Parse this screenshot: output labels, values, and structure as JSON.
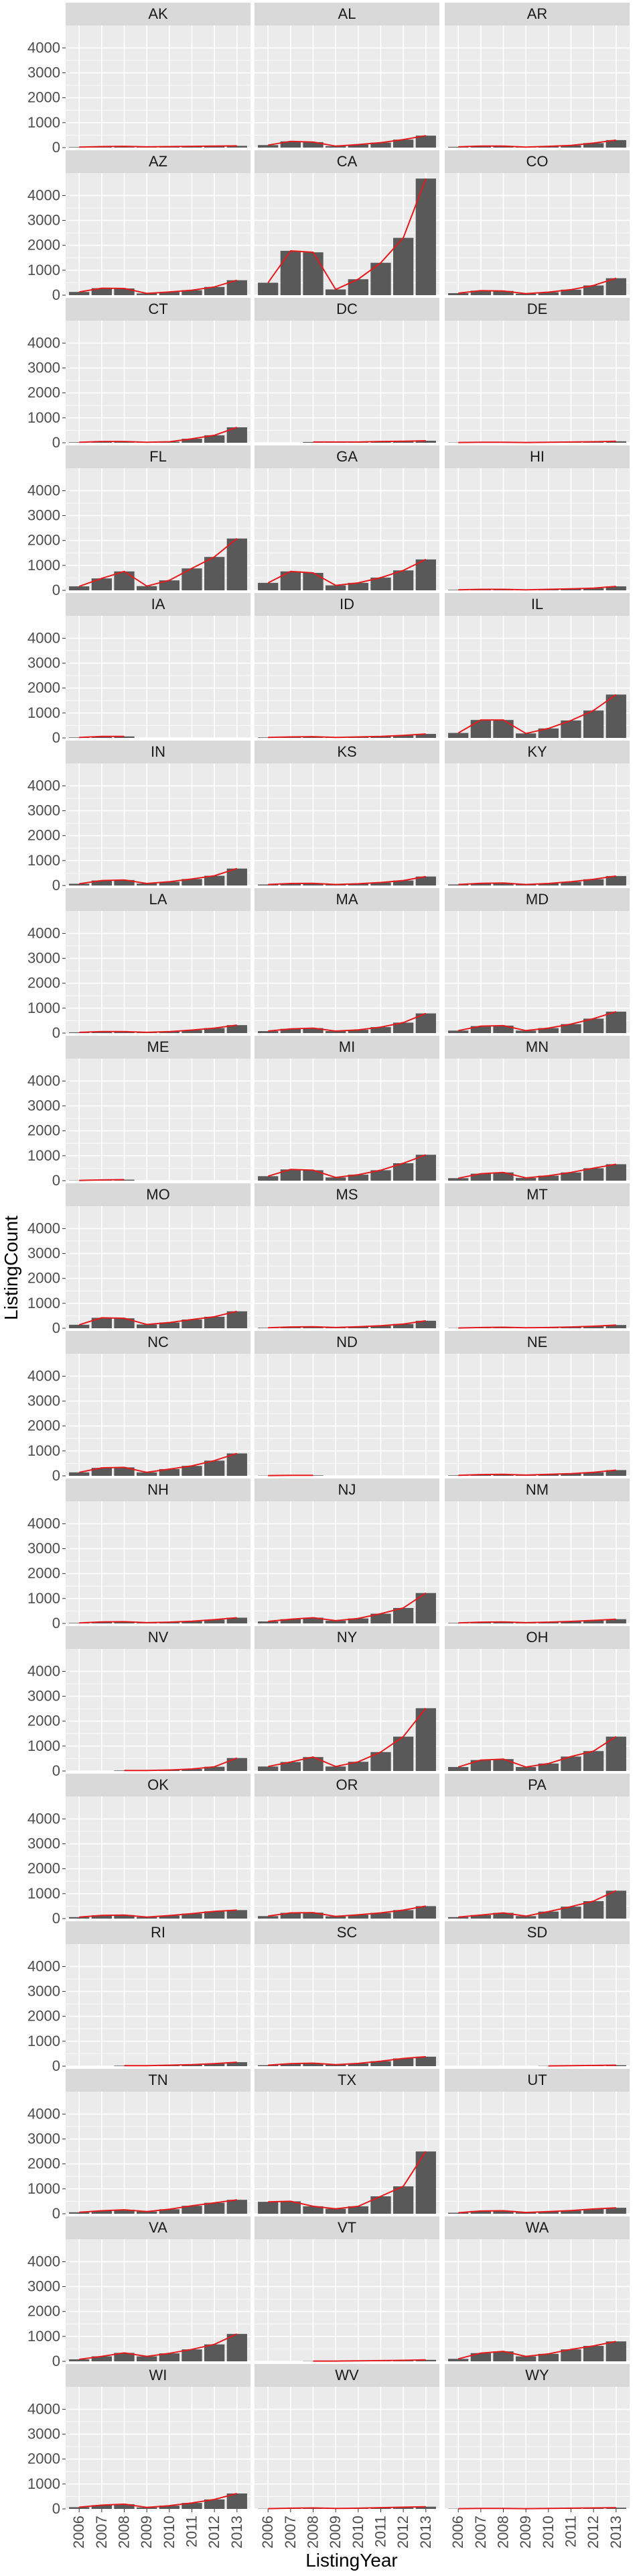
{
  "chart_data": {
    "type": "bar",
    "facet_by": "state",
    "facet_layout": "3 columns x 17 rows",
    "overlay": "line",
    "xlabel": "ListingYear",
    "ylabel": "ListingCount",
    "x": [
      "2006",
      "2007",
      "2008",
      "2009",
      "2010",
      "2011",
      "2012",
      "2013"
    ],
    "ylim": [
      0,
      4900
    ],
    "yticks": [
      0,
      1000,
      2000,
      3000,
      4000
    ],
    "grid": true,
    "colors": {
      "bar": "#595959",
      "line": "#e41a1c",
      "panel": "#ebebeb",
      "strip": "#d9d9d9",
      "gridline": "#ffffff"
    },
    "panels": [
      {
        "label": "AK",
        "values": [
          20,
          40,
          50,
          30,
          40,
          50,
          60,
          70
        ]
      },
      {
        "label": "AL",
        "values": [
          100,
          250,
          220,
          60,
          120,
          200,
          320,
          480
        ]
      },
      {
        "label": "AR",
        "values": [
          30,
          60,
          60,
          20,
          50,
          90,
          180,
          300
        ]
      },
      {
        "label": "AZ",
        "values": [
          130,
          280,
          270,
          70,
          130,
          200,
          330,
          600
        ]
      },
      {
        "label": "CA",
        "values": [
          500,
          1780,
          1720,
          230,
          640,
          1300,
          2300,
          4680
        ]
      },
      {
        "label": "CO",
        "values": [
          80,
          180,
          170,
          60,
          120,
          220,
          390,
          680
        ]
      },
      {
        "label": "CT",
        "values": [
          20,
          50,
          50,
          20,
          40,
          160,
          300,
          620
        ]
      },
      {
        "label": "DC",
        "values": [
          null,
          null,
          30,
          30,
          30,
          50,
          60,
          80
        ]
      },
      {
        "label": "DE",
        "values": [
          10,
          20,
          20,
          10,
          20,
          30,
          40,
          60
        ]
      },
      {
        "label": "FL",
        "values": [
          160,
          480,
          760,
          170,
          400,
          880,
          1340,
          2080
        ]
      },
      {
        "label": "GA",
        "values": [
          300,
          760,
          700,
          200,
          300,
          510,
          800,
          1240
        ]
      },
      {
        "label": "HI",
        "values": [
          20,
          40,
          40,
          20,
          40,
          60,
          90,
          160
        ]
      },
      {
        "label": "IA",
        "values": [
          20,
          60,
          60,
          null,
          null,
          null,
          null,
          null
        ]
      },
      {
        "label": "ID",
        "values": [
          20,
          40,
          50,
          20,
          40,
          60,
          100,
          160
        ]
      },
      {
        "label": "IL",
        "values": [
          200,
          720,
          720,
          180,
          380,
          700,
          1100,
          1740
        ]
      },
      {
        "label": "IN",
        "values": [
          70,
          200,
          220,
          80,
          150,
          260,
          390,
          680
        ]
      },
      {
        "label": "KS",
        "values": [
          40,
          80,
          90,
          40,
          70,
          120,
          200,
          360
        ]
      },
      {
        "label": "KY",
        "values": [
          40,
          90,
          100,
          40,
          80,
          150,
          250,
          380
        ]
      },
      {
        "label": "LA",
        "values": [
          30,
          60,
          60,
          30,
          60,
          120,
          200,
          320
        ]
      },
      {
        "label": "MA",
        "values": [
          80,
          170,
          200,
          80,
          130,
          240,
          420,
          790
        ]
      },
      {
        "label": "MD",
        "values": [
          100,
          280,
          300,
          100,
          200,
          360,
          580,
          860
        ]
      },
      {
        "label": "ME",
        "values": [
          10,
          30,
          40,
          null,
          null,
          null,
          null,
          null
        ]
      },
      {
        "label": "MI",
        "values": [
          180,
          450,
          420,
          130,
          240,
          420,
          700,
          1040
        ]
      },
      {
        "label": "MN",
        "values": [
          100,
          280,
          330,
          110,
          200,
          330,
          500,
          660
        ]
      },
      {
        "label": "MO",
        "values": [
          140,
          420,
          400,
          150,
          230,
          350,
          460,
          680
        ]
      },
      {
        "label": "MS",
        "values": [
          20,
          50,
          60,
          30,
          60,
          100,
          170,
          300
        ]
      },
      {
        "label": "MT",
        "values": [
          10,
          30,
          40,
          20,
          30,
          50,
          80,
          130
        ]
      },
      {
        "label": "NC",
        "values": [
          140,
          320,
          340,
          140,
          270,
          400,
          610,
          900
        ]
      },
      {
        "label": "ND",
        "values": [
          10,
          20,
          20,
          null,
          null,
          null,
          null,
          null
        ]
      },
      {
        "label": "NE",
        "values": [
          20,
          50,
          60,
          30,
          60,
          90,
          140,
          230
        ]
      },
      {
        "label": "NH",
        "values": [
          20,
          60,
          70,
          30,
          50,
          90,
          150,
          230
        ]
      },
      {
        "label": "NJ",
        "values": [
          80,
          170,
          230,
          110,
          200,
          390,
          620,
          1220
        ]
      },
      {
        "label": "NM",
        "values": [
          20,
          50,
          60,
          30,
          50,
          80,
          120,
          170
        ]
      },
      {
        "label": "NV",
        "values": [
          null,
          null,
          20,
          20,
          40,
          80,
          170,
          520
        ]
      },
      {
        "label": "NY",
        "values": [
          180,
          360,
          560,
          180,
          370,
          760,
          1380,
          2520
        ]
      },
      {
        "label": "OH",
        "values": [
          160,
          440,
          480,
          160,
          300,
          580,
          800,
          1380
        ]
      },
      {
        "label": "OK",
        "values": [
          60,
          130,
          140,
          60,
          120,
          200,
          290,
          340
        ]
      },
      {
        "label": "OR",
        "values": [
          100,
          230,
          240,
          90,
          150,
          230,
          340,
          500
        ]
      },
      {
        "label": "PA",
        "values": [
          60,
          140,
          230,
          100,
          280,
          480,
          700,
          1120
        ]
      },
      {
        "label": "RI",
        "values": [
          null,
          null,
          20,
          20,
          40,
          60,
          100,
          160
        ]
      },
      {
        "label": "SC",
        "values": [
          40,
          100,
          120,
          60,
          110,
          200,
          310,
          380
        ]
      },
      {
        "label": "SD",
        "values": [
          null,
          null,
          null,
          null,
          10,
          20,
          30,
          40
        ]
      },
      {
        "label": "TN",
        "values": [
          60,
          120,
          160,
          90,
          180,
          320,
          440,
          560
        ]
      },
      {
        "label": "TX",
        "values": [
          480,
          500,
          300,
          200,
          300,
          700,
          1100,
          2500
        ]
      },
      {
        "label": "UT",
        "values": [
          40,
          110,
          120,
          50,
          90,
          130,
          190,
          240
        ]
      },
      {
        "label": "VA",
        "values": [
          80,
          200,
          340,
          200,
          320,
          480,
          680,
          1100
        ]
      },
      {
        "label": "VT",
        "values": [
          null,
          null,
          10,
          10,
          20,
          30,
          40,
          60
        ]
      },
      {
        "label": "WA",
        "values": [
          100,
          330,
          400,
          200,
          300,
          480,
          620,
          800
        ]
      },
      {
        "label": "WI",
        "values": [
          70,
          150,
          190,
          60,
          130,
          240,
          380,
          620
        ]
      },
      {
        "label": "WV",
        "values": [
          10,
          30,
          40,
          20,
          30,
          50,
          70,
          90
        ]
      },
      {
        "label": "WY",
        "values": [
          10,
          20,
          20,
          10,
          20,
          30,
          40,
          50
        ]
      }
    ]
  }
}
